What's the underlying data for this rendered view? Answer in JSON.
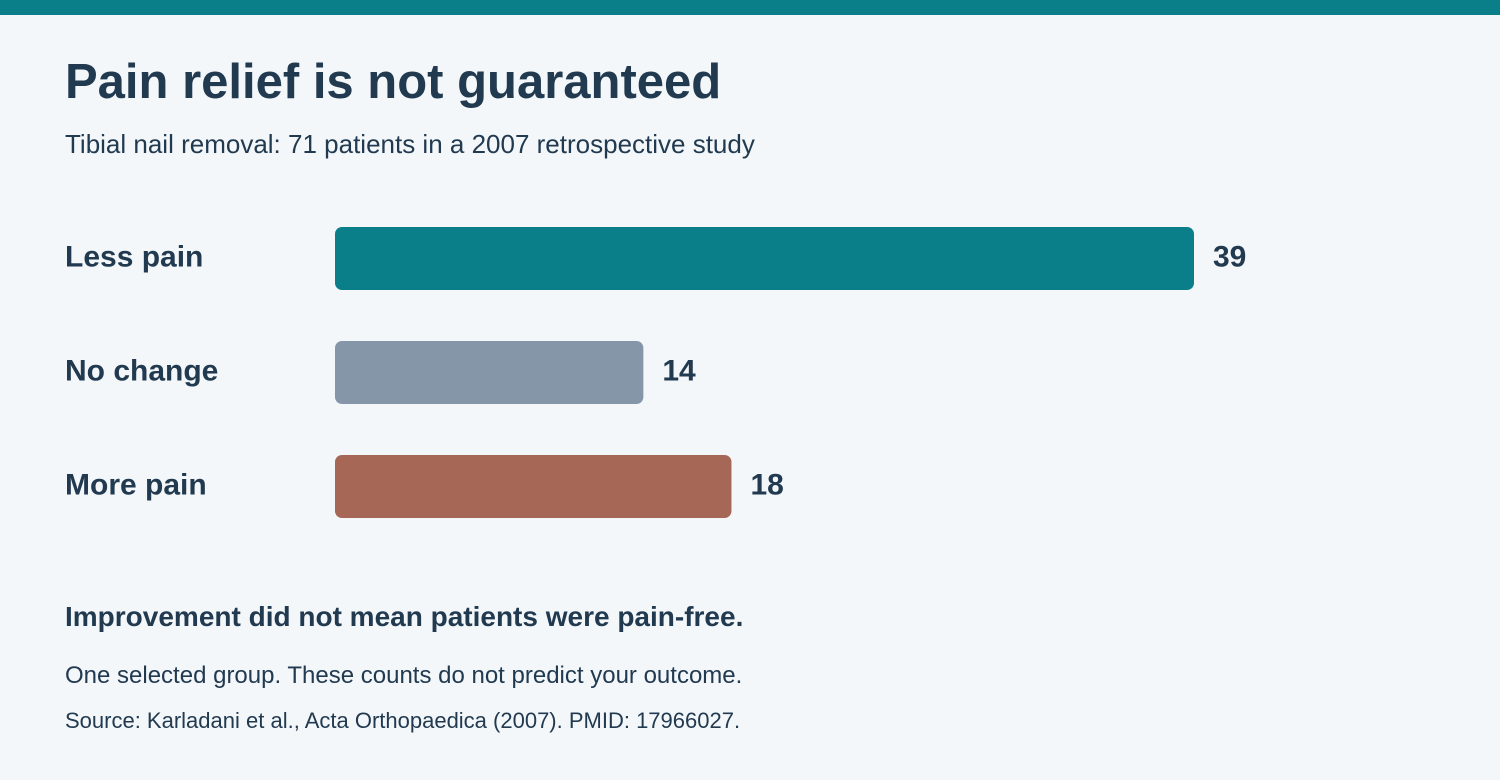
{
  "colors": {
    "accent_bar": "#0a7f8a",
    "text": "#223a50",
    "background": "#f3f7fa"
  },
  "header": {
    "title": "Pain relief is not guaranteed",
    "subtitle": "Tibial nail removal: 71 patients in a 2007 retrospective study"
  },
  "chart_data": {
    "type": "bar",
    "orientation": "horizontal",
    "categories": [
      "Less pain",
      "No change",
      "More pain"
    ],
    "values": [
      39,
      14,
      18
    ],
    "colors": [
      "#0a7f8a",
      "#8496a7",
      "#a66756"
    ],
    "xlim": [
      0,
      39
    ],
    "grid": false,
    "data_labels": true
  },
  "footer": {
    "takeaway": "Improvement did not mean patients were pain-free.",
    "disclaimer": "One selected group. These counts do not predict your outcome.",
    "source": "Source: Karladani et al., Acta Orthopaedica (2007). PMID: 17966027."
  }
}
